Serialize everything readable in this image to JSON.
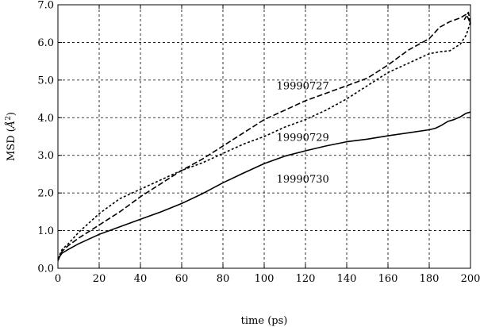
{
  "chart_data": {
    "type": "line",
    "title": "",
    "xlabel": "time (ps)",
    "ylabel": "MSD (Å²)",
    "ylabel_parts": {
      "prefix": "MSD (",
      "unit": "Å",
      "superscript": "2",
      "suffix": ")"
    },
    "xlim": [
      0,
      200
    ],
    "ylim": [
      0.0,
      7.0
    ],
    "xticks": [
      0,
      20,
      40,
      60,
      80,
      100,
      120,
      140,
      160,
      180,
      200
    ],
    "yticks": [
      0.0,
      1.0,
      2.0,
      3.0,
      4.0,
      5.0,
      6.0,
      7.0
    ],
    "xtick_labels": [
      "0",
      "20",
      "40",
      "60",
      "80",
      "100",
      "120",
      "140",
      "160",
      "180",
      "200"
    ],
    "ytick_labels": [
      "0.0",
      "1.0",
      "2.0",
      "3.0",
      "4.0",
      "5.0",
      "6.0",
      "7.0"
    ],
    "grid": true,
    "legend": "none",
    "series": [
      {
        "name": "19990727",
        "style": "long-dash",
        "label_position": {
          "x": 106,
          "y": 4.75
        },
        "x": [
          0,
          2,
          5,
          10,
          20,
          30,
          40,
          50,
          60,
          70,
          80,
          90,
          100,
          110,
          120,
          130,
          140,
          150,
          160,
          170,
          180,
          185,
          190,
          195,
          198,
          200,
          199,
          197
        ],
        "y": [
          0.2,
          0.45,
          0.6,
          0.8,
          1.15,
          1.5,
          1.9,
          2.25,
          2.6,
          2.9,
          3.25,
          3.6,
          3.95,
          4.2,
          4.45,
          4.65,
          4.85,
          5.05,
          5.4,
          5.8,
          6.1,
          6.4,
          6.55,
          6.65,
          6.75,
          6.5,
          6.8,
          6.6
        ]
      },
      {
        "name": "19990729",
        "style": "short-dash",
        "label_position": {
          "x": 106,
          "y": 3.38
        },
        "x": [
          0,
          2,
          5,
          10,
          20,
          30,
          40,
          50,
          60,
          70,
          80,
          90,
          100,
          110,
          120,
          130,
          140,
          150,
          160,
          170,
          180,
          185,
          190,
          195,
          198,
          200
        ],
        "y": [
          0.25,
          0.5,
          0.65,
          0.95,
          1.45,
          1.85,
          2.1,
          2.35,
          2.6,
          2.8,
          3.05,
          3.3,
          3.5,
          3.75,
          3.95,
          4.2,
          4.5,
          4.85,
          5.2,
          5.45,
          5.7,
          5.75,
          5.78,
          5.95,
          6.2,
          6.55
        ]
      },
      {
        "name": "19990730",
        "style": "solid",
        "label_position": {
          "x": 106,
          "y": 2.28
        },
        "x": [
          0,
          2,
          5,
          10,
          20,
          30,
          40,
          50,
          60,
          70,
          80,
          90,
          100,
          110,
          120,
          130,
          140,
          150,
          160,
          170,
          180,
          183,
          186,
          189,
          192,
          195,
          198,
          200
        ],
        "y": [
          0.25,
          0.4,
          0.5,
          0.65,
          0.9,
          1.1,
          1.3,
          1.5,
          1.72,
          1.98,
          2.27,
          2.53,
          2.78,
          2.98,
          3.12,
          3.25,
          3.36,
          3.43,
          3.52,
          3.6,
          3.68,
          3.72,
          3.8,
          3.9,
          3.95,
          4.02,
          4.12,
          4.15
        ]
      }
    ]
  }
}
